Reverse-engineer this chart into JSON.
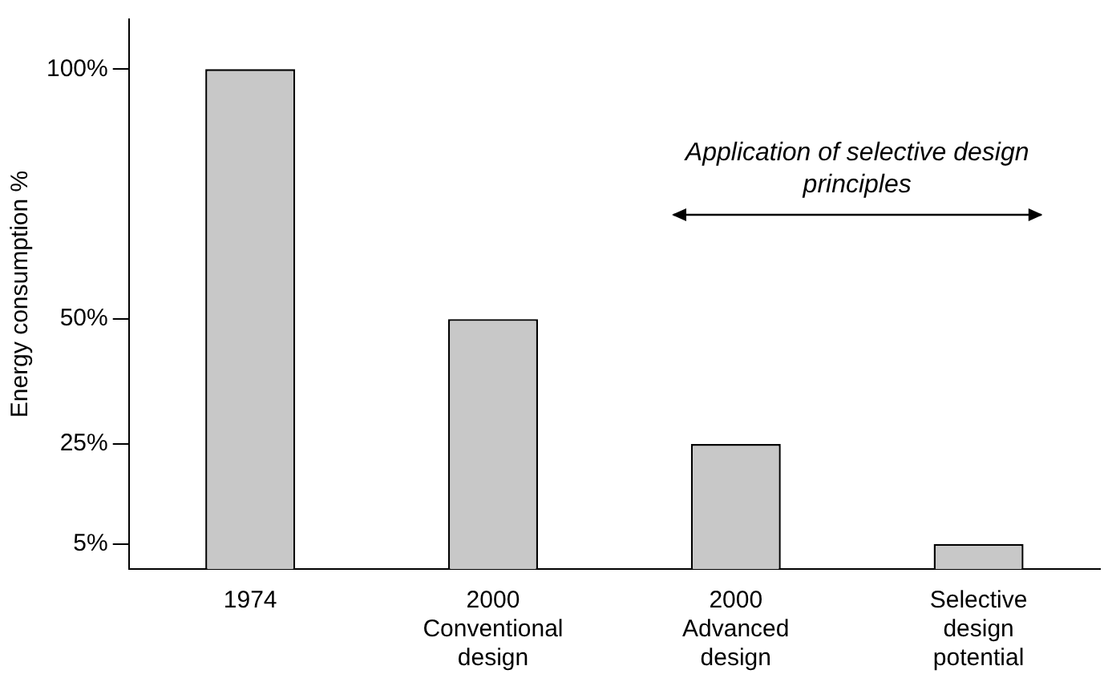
{
  "chart_data": {
    "type": "bar",
    "ylabel": "Energy consumption %",
    "categories": [
      "1974",
      "2000\nConventional\ndesign",
      "2000\nAdvanced\ndesign",
      "Selective\ndesign\npotential"
    ],
    "values": [
      100,
      50,
      25,
      5
    ],
    "color": "#c8c8c8",
    "ylim": [
      0,
      110
    ],
    "yticks": [
      {
        "value": 5,
        "label": "5%"
      },
      {
        "value": 25,
        "label": "25%"
      },
      {
        "value": 50,
        "label": "50%"
      },
      {
        "value": 100,
        "label": "100%"
      }
    ],
    "grid": false,
    "legend": false,
    "annotations": [
      "Application of selective design principles"
    ]
  }
}
